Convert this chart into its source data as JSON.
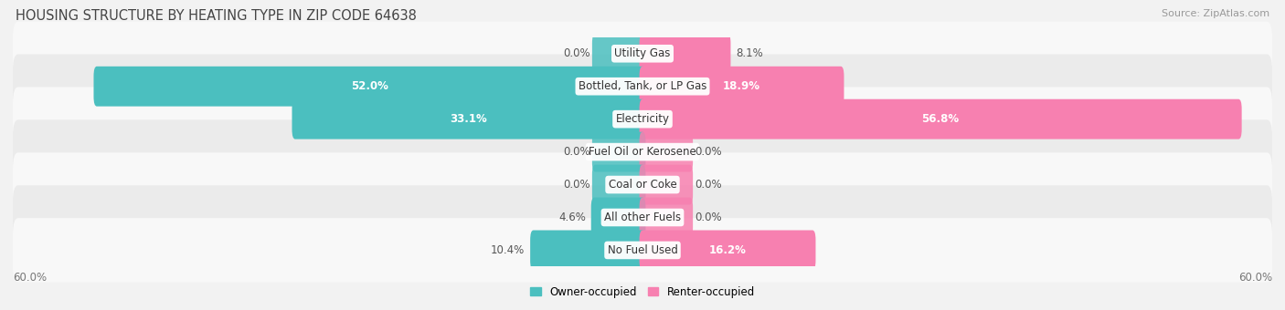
{
  "title": "HOUSING STRUCTURE BY HEATING TYPE IN ZIP CODE 64638",
  "source": "Source: ZipAtlas.com",
  "categories": [
    "Utility Gas",
    "Bottled, Tank, or LP Gas",
    "Electricity",
    "Fuel Oil or Kerosene",
    "Coal or Coke",
    "All other Fuels",
    "No Fuel Used"
  ],
  "owner_values": [
    0.0,
    52.0,
    33.1,
    0.0,
    0.0,
    4.6,
    10.4
  ],
  "renter_values": [
    8.1,
    18.9,
    56.8,
    0.0,
    0.0,
    0.0,
    16.2
  ],
  "owner_color": "#4bbfbf",
  "renter_color": "#f780b0",
  "axis_max": 60.0,
  "bar_height": 0.62,
  "bg_color": "#f2f2f2",
  "row_colors": [
    "#f8f8f8",
    "#ebebeb"
  ],
  "title_fontsize": 10.5,
  "label_fontsize": 8.5,
  "tick_fontsize": 8.5,
  "source_fontsize": 8,
  "min_bar_width": 4.5,
  "zero_bar_width": 4.5
}
